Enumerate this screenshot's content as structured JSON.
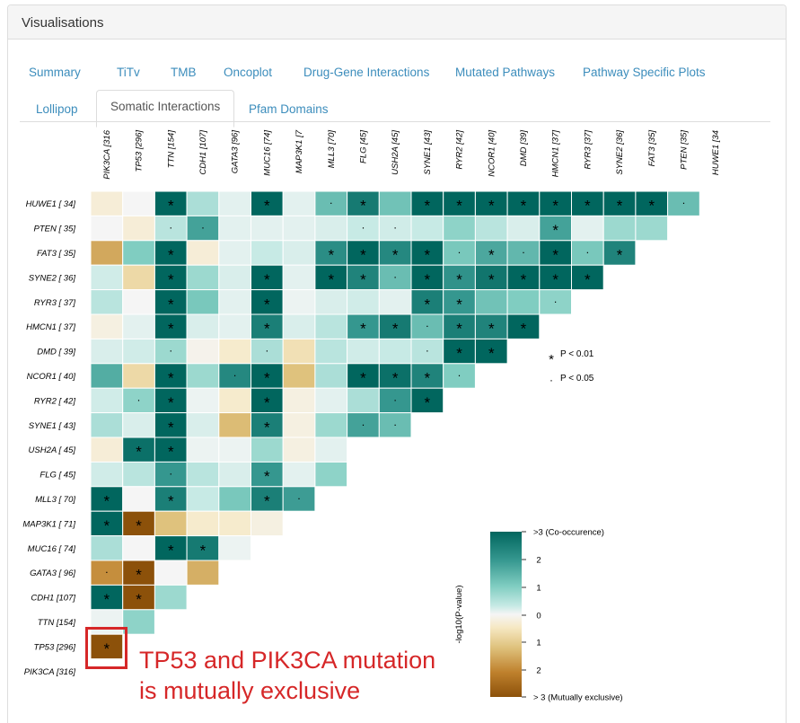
{
  "panel": {
    "title": "Visualisations"
  },
  "tabs": [
    {
      "label": "Summary",
      "active": false
    },
    {
      "label": "TiTv",
      "active": false
    },
    {
      "label": "TMB",
      "active": false
    },
    {
      "label": "Oncoplot",
      "active": false
    },
    {
      "label": "Drug-Gene Interactions",
      "active": false
    },
    {
      "label": "Mutated Pathways",
      "active": false
    },
    {
      "label": "Pathway Specific Plots",
      "active": false
    },
    {
      "label": "Lollipop",
      "active": false
    },
    {
      "label": "Somatic Interactions",
      "active": true
    },
    {
      "label": "Pfam Domains",
      "active": false
    }
  ],
  "chart_data": {
    "type": "heatmap",
    "title": "",
    "x_labels": [
      "PIK3CA [316",
      "TP53 [296]",
      "TTN [154]",
      "CDH1 [107]",
      "GATA3 [96]",
      "MUC16 [74]",
      "MAP3K1 [7",
      "MLL3 [70]",
      "FLG [45]",
      "USH2A [45]",
      "SYNE1 [43]",
      "RYR2 [42]",
      "NCOR1 [40]",
      "DMD [39]",
      "HMCN1 [37]",
      "RYR3 [37]",
      "SYNE2 [36]",
      "FAT3 [35]",
      "PTEN [35]",
      "HUWE1 [34"
    ],
    "y_labels": [
      "HUWE1 [ 34]",
      "PTEN [ 35]",
      "FAT3 [ 35]",
      "SYNE2 [ 36]",
      "RYR3 [ 37]",
      "HMCN1 [ 37]",
      "DMD [ 39]",
      "NCOR1 [ 40]",
      "RYR2 [ 42]",
      "SYNE1 [ 43]",
      "USH2A [ 45]",
      "FLG [ 45]",
      "MLL3 [ 70]",
      "MAP3K1 [ 71]",
      "MUC16 [ 74]",
      "GATA3 [ 96]",
      "CDH1 [107]",
      "TTN [154]",
      "TP53 [296]",
      "PIK3CA [316]"
    ],
    "values": [
      [
        -0.3,
        0.0,
        3,
        0.7,
        0.2,
        3,
        0.2,
        1.3,
        2.6,
        1.2,
        3,
        3,
        3,
        3,
        3,
        3,
        3,
        3,
        1.3
      ],
      [
        0.0,
        -0.3,
        0.6,
        1.8,
        0.2,
        0.2,
        0.2,
        0.3,
        0.5,
        0.4,
        0.5,
        0.9,
        0.6,
        0.3,
        1.8,
        0.2,
        0.8,
        0.8
      ],
      [
        -1.4,
        1.0,
        3,
        -0.3,
        0.2,
        0.5,
        0.3,
        2.2,
        3,
        2.3,
        3,
        1.1,
        1.7,
        1.4,
        3,
        1.1,
        2.4
      ],
      [
        0.4,
        -0.7,
        3,
        0.8,
        0.3,
        3,
        0.2,
        3,
        2.4,
        1.3,
        3,
        2.1,
        2.7,
        3,
        3,
        3
      ],
      [
        0.6,
        0.0,
        3,
        1.1,
        0.2,
        3,
        0.1,
        0.3,
        0.4,
        0.2,
        2.5,
        2.0,
        1.2,
        1.0,
        0.9
      ],
      [
        -0.2,
        0.2,
        3,
        0.3,
        0.2,
        2.5,
        0.3,
        0.6,
        2.0,
        2.6,
        1.3,
        2.5,
        2.4,
        3
      ],
      [
        0.3,
        0.4,
        0.8,
        -0.1,
        -0.4,
        0.7,
        -0.6,
        0.6,
        0.4,
        0.5,
        0.6,
        3,
        3
      ],
      [
        1.6,
        -0.7,
        3,
        0.8,
        2.3,
        3,
        -1.0,
        0.7,
        3,
        2.8,
        2.4,
        1.0
      ],
      [
        0.4,
        0.9,
        3,
        0.1,
        -0.4,
        3,
        -0.2,
        0.2,
        0.7,
        2.0,
        3
      ],
      [
        0.7,
        0.3,
        3,
        0.3,
        -1.1,
        2.5,
        -0.2,
        0.8,
        1.8,
        1.3
      ],
      [
        -0.3,
        2.8,
        3,
        0.1,
        0.1,
        0.8,
        -0.2,
        0.2
      ],
      [
        0.4,
        0.6,
        2.0,
        0.6,
        0.3,
        2.0,
        0.2,
        0.9
      ],
      [
        3,
        0.0,
        2.5,
        0.5,
        1.1,
        2.5,
        1.9
      ],
      [
        3,
        -3,
        -1.0,
        -0.4,
        -0.4,
        -0.2
      ],
      [
        0.7,
        0.0,
        3,
        2.6,
        0.1
      ],
      [
        -1.8,
        -3,
        0.0,
        -1.3
      ],
      [
        3,
        -3,
        0.8
      ],
      [
        0.1,
        0.9
      ],
      [
        -3
      ]
    ],
    "significance": [
      [
        "",
        "",
        "*",
        "",
        "",
        "*",
        "",
        "·",
        "*",
        "",
        "*",
        "*",
        "*",
        "*",
        "*",
        "*",
        "*",
        "*",
        "·"
      ],
      [
        "",
        "",
        "·",
        "·",
        "",
        "",
        "",
        "",
        "·",
        "·",
        "",
        "",
        "",
        "",
        "*",
        "",
        "",
        ""
      ],
      [
        "",
        "",
        "*",
        "",
        "",
        "",
        "",
        "*",
        "*",
        "*",
        "*",
        "·",
        "*",
        "·",
        "*",
        "·",
        "*"
      ],
      [
        "",
        "",
        "*",
        "",
        "",
        "*",
        "",
        "*",
        "*",
        "·",
        "*",
        "*",
        "*",
        "*",
        "*",
        "*"
      ],
      [
        "",
        "",
        "*",
        "",
        "",
        "*",
        "",
        "",
        "",
        "",
        "*",
        "*",
        "",
        "",
        "·"
      ],
      [
        "",
        "",
        "*",
        "",
        "",
        "*",
        "",
        "",
        "*",
        "*",
        "·",
        "*",
        "*",
        "*"
      ],
      [
        "",
        "",
        "·",
        "",
        "",
        "·",
        "",
        "",
        "",
        "",
        "·",
        "*",
        "*"
      ],
      [
        "",
        "",
        "*",
        "",
        "·",
        "*",
        "",
        "",
        "*",
        "*",
        "*",
        "·"
      ],
      [
        "",
        "·",
        "*",
        "",
        "",
        "*",
        "",
        "",
        "",
        "·",
        "*"
      ],
      [
        "",
        "",
        "*",
        "",
        "",
        "*",
        "",
        "",
        "·",
        "·"
      ],
      [
        "",
        "*",
        "*",
        "",
        "",
        "",
        "",
        ""
      ],
      [
        "",
        "",
        "·",
        "",
        "",
        "*",
        "",
        ""
      ],
      [
        "*",
        "",
        "*",
        "",
        "",
        "*",
        "·"
      ],
      [
        "*",
        "*",
        "",
        "",
        "",
        ""
      ],
      [
        "",
        "",
        "*",
        "*",
        ""
      ],
      [
        "·",
        "*",
        "",
        ""
      ],
      [
        "*",
        "*",
        ""
      ],
      [
        "",
        ""
      ],
      [
        "*"
      ]
    ],
    "significance_legend": [
      {
        "symbol": "*",
        "label": "P < 0.01"
      },
      {
        "symbol": "·",
        "label": "P < 0.05"
      }
    ],
    "colorbar": {
      "title": "-log10(P-value)",
      "range": [
        -3,
        3
      ],
      "tick_labels": [
        ">3 (Co-occurence)",
        "2",
        "1",
        "0",
        "1",
        "2",
        "> 3 (Mutually exclusive)"
      ],
      "colors": {
        "co_occurrence": "#01665e",
        "neutral": "#f5f5f5",
        "exclusive": "#8c510a"
      }
    }
  },
  "annotation": {
    "line1": "TP53 and PIK3CA mutation",
    "line2": "is mutually exclusive",
    "color": "#d62728"
  }
}
